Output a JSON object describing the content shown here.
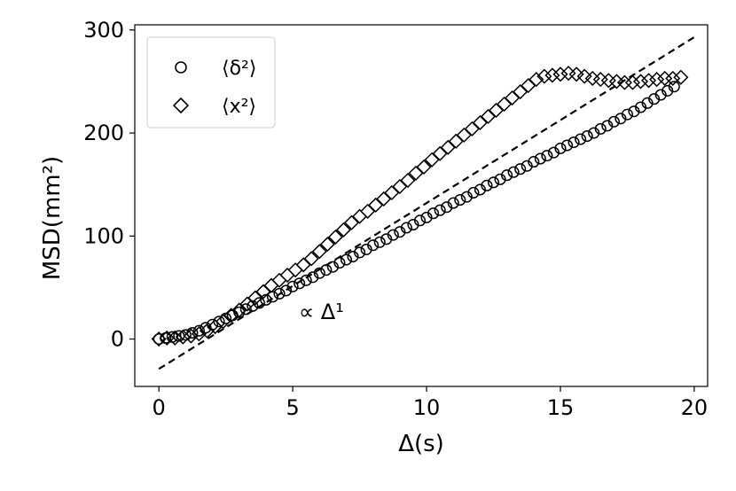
{
  "chart_data": {
    "type": "scatter",
    "xlabel": "Δ(s)",
    "ylabel": "MSD(mm²)",
    "xlim": [
      -0.9,
      20.5
    ],
    "ylim": [
      -46,
      305
    ],
    "xticks": [
      "0",
      "5",
      "10",
      "15",
      "20"
    ],
    "yticks": [
      "0",
      "100",
      "200",
      "300"
    ],
    "legend_position": "top-left",
    "grid": false,
    "annotation": "∝ Δ¹",
    "fit_line": {
      "style": "dashed",
      "x": [
        0,
        20
      ],
      "y": [
        -29,
        293
      ]
    },
    "series": [
      {
        "name": "⟨δ²⟩",
        "marker": "circle",
        "x": [
          0,
          0.25,
          0.5,
          0.75,
          1.0,
          1.25,
          1.5,
          1.75,
          2.0,
          2.25,
          2.5,
          2.75,
          3.0,
          3.25,
          3.5,
          3.75,
          4.0,
          4.25,
          4.5,
          4.75,
          5.0,
          5.25,
          5.5,
          5.75,
          6.0,
          6.25,
          6.5,
          6.75,
          7.0,
          7.25,
          7.5,
          7.75,
          8.0,
          8.25,
          8.5,
          8.75,
          9.0,
          9.25,
          9.5,
          9.75,
          10.0,
          10.25,
          10.5,
          10.75,
          11.0,
          11.25,
          11.5,
          11.75,
          12.0,
          12.25,
          12.5,
          12.75,
          13.0,
          13.25,
          13.5,
          13.75,
          14.0,
          14.25,
          14.5,
          14.75,
          15.0,
          15.25,
          15.5,
          15.75,
          16.0,
          16.25,
          16.5,
          16.75,
          17.0,
          17.25,
          17.5,
          17.75,
          18.0,
          18.25,
          18.5,
          18.75,
          19.0,
          19.25
        ],
        "y": [
          0,
          1,
          2,
          3,
          4,
          6,
          8,
          11,
          14,
          17,
          20,
          23,
          26,
          29,
          32,
          35,
          38,
          41,
          44,
          47,
          51,
          54,
          57,
          60,
          64,
          67,
          70,
          74,
          77,
          80,
          84,
          87,
          91,
          94,
          97,
          101,
          104,
          108,
          111,
          115,
          118,
          122,
          125,
          128,
          132,
          135,
          138,
          142,
          145,
          149,
          152,
          155,
          159,
          162,
          165,
          168,
          172,
          175,
          178,
          181,
          185,
          188,
          191,
          194,
          197,
          200,
          204,
          207,
          211,
          214,
          218,
          221,
          225,
          229,
          233,
          237,
          241,
          245
        ]
      },
      {
        "name": "⟨x²⟩",
        "marker": "diamond",
        "x": [
          0,
          0.3,
          0.6,
          0.9,
          1.2,
          1.5,
          1.8,
          2.1,
          2.4,
          2.7,
          3.0,
          3.3,
          3.6,
          3.9,
          4.2,
          4.5,
          4.8,
          5.1,
          5.4,
          5.7,
          6.0,
          6.3,
          6.6,
          6.9,
          7.2,
          7.5,
          7.8,
          8.1,
          8.4,
          8.7,
          9.0,
          9.3,
          9.6,
          9.9,
          10.2,
          10.5,
          10.8,
          11.1,
          11.4,
          11.7,
          12.0,
          12.3,
          12.6,
          12.9,
          13.2,
          13.5,
          13.8,
          14.1,
          14.4,
          14.7,
          15.0,
          15.3,
          15.6,
          15.9,
          16.2,
          16.5,
          16.8,
          17.1,
          17.4,
          17.7,
          18.0,
          18.3,
          18.6,
          18.9,
          19.2,
          19.5
        ],
        "y": [
          0,
          1,
          1,
          2,
          3,
          5,
          8,
          12,
          17,
          23,
          28,
          34,
          40,
          46,
          52,
          57,
          62,
          67,
          72,
          78,
          85,
          92,
          99,
          106,
          113,
          119,
          124,
          130,
          136,
          142,
          148,
          154,
          161,
          167,
          174,
          180,
          186,
          192,
          198,
          204,
          210,
          216,
          222,
          228,
          234,
          240,
          246,
          252,
          255,
          256,
          257,
          258,
          257,
          255,
          253,
          252,
          251,
          250,
          249,
          249,
          250,
          251,
          252,
          253,
          253,
          254
        ]
      }
    ]
  }
}
